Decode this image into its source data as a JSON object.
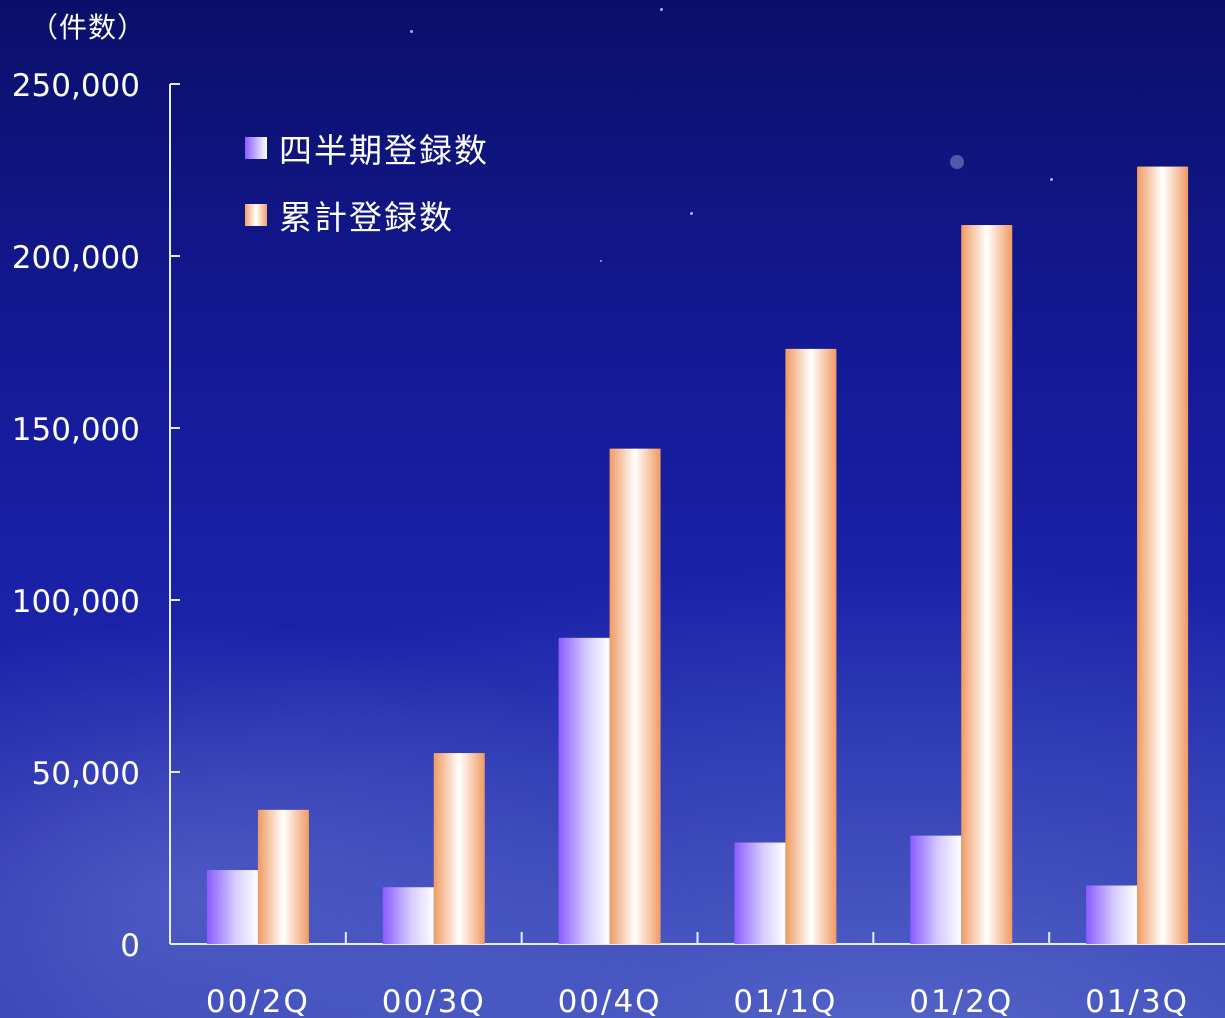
{
  "chart_data": {
    "type": "bar",
    "unit_label": "（件数）",
    "categories": [
      "00/2Q",
      "00/3Q",
      "00/4Q",
      "01/1Q",
      "01/2Q",
      "01/3Q"
    ],
    "series": [
      {
        "name": "四半期登録数",
        "values": [
          21500,
          16500,
          89000,
          29500,
          31500,
          17000
        ],
        "color": "#9b6cff"
      },
      {
        "name": "累計登録数",
        "values": [
          39000,
          55500,
          144000,
          173000,
          209000,
          226000
        ],
        "color": "#f3a06a"
      }
    ],
    "yticks": [
      "0",
      "50,000",
      "100,000",
      "150,000",
      "200,000",
      "250,000"
    ],
    "ylim": [
      0,
      250000
    ],
    "grid": false,
    "legend_position": "top-left"
  }
}
